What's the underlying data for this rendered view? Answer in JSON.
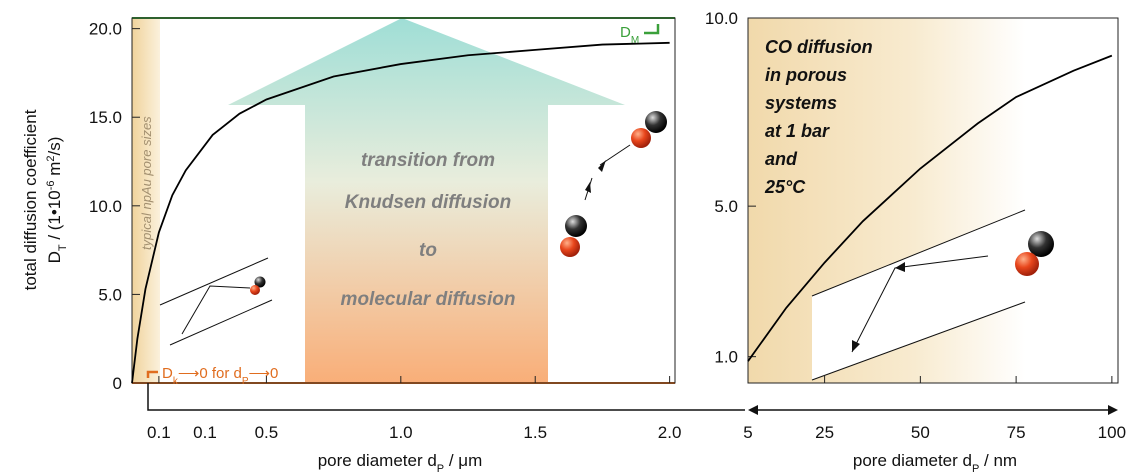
{
  "chart_data": [
    {
      "type": "line",
      "ylabel_line1": "total diffusion coefficient",
      "ylabel": [
        "D",
        "T",
        " / (1•10",
        "-6",
        " m",
        "2",
        "/s)"
      ],
      "xlabel": [
        "pore diameter d",
        "P",
        " / μm"
      ],
      "xlim": [
        0,
        2.02
      ],
      "ylim": [
        0,
        20.6
      ],
      "xticks": [
        0.1,
        0.5,
        {
          "value": 1,
          "label": "1.0"
        },
        1.5,
        {
          "value": 2,
          "label": "2.0"
        }
      ],
      "yticks": [
        0,
        {
          "value": 5,
          "label": "5.0"
        },
        {
          "value": 10,
          "label": "10.0"
        },
        {
          "value": 15,
          "label": "15.0"
        },
        {
          "value": 20,
          "label": "20.0"
        }
      ],
      "extra_tick_label": "0.1",
      "x": [
        0,
        0.02,
        0.05,
        0.1,
        0.15,
        0.2,
        0.3,
        0.4,
        0.5,
        0.75,
        1.0,
        1.25,
        1.5,
        1.75,
        2.0
      ],
      "series": [
        {
          "color": "#000000",
          "values": [
            0,
            2.5,
            5.3,
            8.5,
            10.6,
            12.0,
            14.0,
            15.2,
            16.0,
            17.3,
            18.0,
            18.5,
            18.8,
            19.1,
            19.2
          ]
        }
      ],
      "side_note": "typical npAu pore sizes",
      "arrow_text": [
        "transition from",
        "Knudsen diffusion",
        "to",
        "molecular diffusion"
      ],
      "upper_limit_label": [
        "D",
        "M"
      ],
      "lower_limit_label": [
        "D",
        "k",
        "⟶0 for d",
        "P",
        "⟶0"
      ]
    },
    {
      "type": "line",
      "xlabel": [
        "pore diameter d",
        "P",
        " / nm"
      ],
      "xlim": [
        5,
        101.6
      ],
      "ylim": [
        0.3,
        10.0
      ],
      "xticks": [
        5,
        25,
        50,
        75,
        100
      ],
      "yticks": [
        {
          "value": 1,
          "label": "1.0"
        },
        {
          "value": 5,
          "label": "5.0"
        },
        {
          "value": 10,
          "label": "10.0"
        }
      ],
      "x": [
        5,
        15,
        25,
        35,
        50,
        65,
        75,
        90,
        100
      ],
      "series": [
        {
          "color": "#000000",
          "values": [
            0.88,
            2.3,
            3.5,
            4.6,
            6.0,
            7.2,
            7.9,
            8.6,
            9.0
          ]
        }
      ],
      "note": [
        "CO diffusion",
        "in porous",
        "systems",
        "at 1 bar",
        "and",
        "25°C"
      ]
    }
  ]
}
